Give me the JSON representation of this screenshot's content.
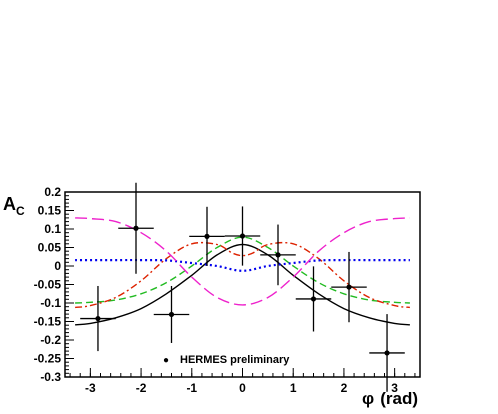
{
  "chart_data": {
    "type": "scatter",
    "xlabel_symbol": "φ",
    "xlabel_unit": "(rad)",
    "ylabel_main": "A",
    "ylabel_sub": "C",
    "xlim": [
      -3.5,
      3.5
    ],
    "ylim": [
      -0.3,
      0.2
    ],
    "x_ticks": [
      -3,
      -2,
      -1,
      0,
      1,
      2,
      3
    ],
    "y_ticks": [
      0.2,
      0.15,
      0.1,
      0.05,
      0,
      -0.05,
      -0.1,
      -0.15,
      -0.2,
      -0.25,
      -0.3
    ],
    "y_tick_labels": [
      "0.2",
      "0.15",
      "0.1",
      "0.05",
      "0",
      "-0.05",
      "-0.1",
      "-0.15",
      "-0.2",
      "-0.25",
      "-0.3"
    ],
    "legend": {
      "marker": "●",
      "label": "HERMES preliminary",
      "position": "bottom-center"
    },
    "series": [
      {
        "style": "points-with-errors",
        "color": "#000000",
        "x": [
          -2.85,
          -2.1,
          -1.4,
          -0.7,
          0.0,
          0.7,
          1.4,
          2.1,
          2.85
        ],
        "y": [
          -0.142,
          0.102,
          -0.131,
          0.08,
          0.081,
          0.03,
          -0.089,
          -0.057,
          -0.235
        ],
        "yerr": [
          0.088,
          0.123,
          0.077,
          0.08,
          0.08,
          0.082,
          0.088,
          0.095,
          0.105
        ],
        "xerr": [
          0.35,
          0.35,
          0.35,
          0.35,
          0.35,
          0.35,
          0.35,
          0.35,
          0.35
        ]
      },
      {
        "style": "solid",
        "color": "#000000",
        "x": [
          -3.3,
          -3.0,
          -2.5,
          -2.0,
          -1.5,
          -1.0,
          -0.5,
          0.0,
          0.5,
          1.0,
          1.5,
          2.0,
          2.5,
          3.0,
          3.3
        ],
        "y": [
          -0.159,
          -0.155,
          -0.14,
          -0.115,
          -0.075,
          -0.025,
          0.03,
          0.058,
          0.03,
          -0.025,
          -0.075,
          -0.115,
          -0.14,
          -0.155,
          -0.159
        ]
      },
      {
        "style": "dashed",
        "color": "#22bb22",
        "x": [
          -3.3,
          -3.0,
          -2.5,
          -2.0,
          -1.5,
          -1.0,
          -0.5,
          0.0,
          0.5,
          1.0,
          1.5,
          2.0,
          2.5,
          3.0,
          3.3
        ],
        "y": [
          -0.1,
          -0.098,
          -0.092,
          -0.075,
          -0.045,
          0.0,
          0.05,
          0.078,
          0.05,
          0.0,
          -0.045,
          -0.075,
          -0.092,
          -0.098,
          -0.1
        ]
      },
      {
        "style": "dashdot",
        "color": "#dd2200",
        "x": [
          -3.3,
          -3.0,
          -2.5,
          -2.0,
          -1.5,
          -1.0,
          -0.5,
          -0.2,
          0.0,
          0.2,
          0.5,
          1.0,
          1.5,
          2.0,
          2.5,
          3.0,
          3.3
        ],
        "y": [
          -0.112,
          -0.107,
          -0.085,
          -0.04,
          0.02,
          0.06,
          0.058,
          0.035,
          0.028,
          0.035,
          0.058,
          0.06,
          0.02,
          -0.04,
          -0.085,
          -0.107,
          -0.112
        ]
      },
      {
        "style": "dotted",
        "color": "#0000ee",
        "x": [
          -3.3,
          -2.5,
          -2.0,
          -1.5,
          -1.0,
          -0.5,
          0.0,
          0.5,
          1.0,
          1.5,
          2.0,
          2.5,
          3.3
        ],
        "y": [
          0.016,
          0.016,
          0.016,
          0.015,
          0.008,
          0.0,
          -0.013,
          0.0,
          0.008,
          0.015,
          0.016,
          0.016,
          0.016
        ]
      },
      {
        "style": "longdash",
        "color": "#ee22cc",
        "x": [
          -3.3,
          -3.0,
          -2.5,
          -2.0,
          -1.5,
          -1.0,
          -0.5,
          0.0,
          0.5,
          1.0,
          1.5,
          2.0,
          2.5,
          3.0,
          3.3
        ],
        "y": [
          0.13,
          0.128,
          0.12,
          0.09,
          0.04,
          -0.03,
          -0.085,
          -0.105,
          -0.085,
          -0.03,
          0.04,
          0.09,
          0.12,
          0.128,
          0.13
        ]
      }
    ]
  }
}
